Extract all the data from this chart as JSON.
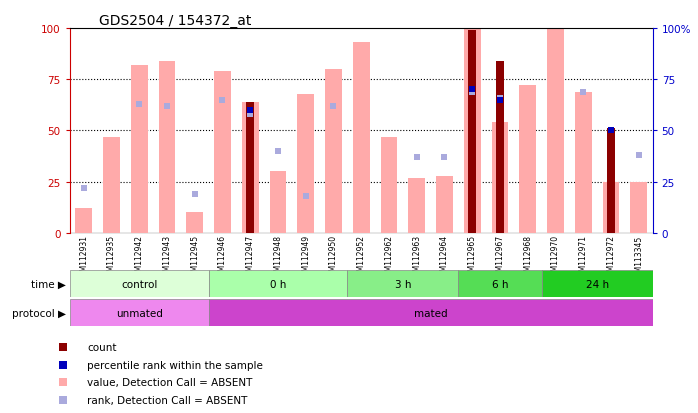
{
  "title": "GDS2504 / 154372_at",
  "samples": [
    "GSM112931",
    "GSM112935",
    "GSM112942",
    "GSM112943",
    "GSM112945",
    "GSM112946",
    "GSM112947",
    "GSM112948",
    "GSM112949",
    "GSM112950",
    "GSM112952",
    "GSM112962",
    "GSM112963",
    "GSM112964",
    "GSM112965",
    "GSM112967",
    "GSM112968",
    "GSM112970",
    "GSM112971",
    "GSM112972",
    "GSM113345"
  ],
  "value_bars": [
    12,
    47,
    82,
    84,
    10,
    79,
    64,
    30,
    68,
    80,
    93,
    47,
    27,
    28,
    100,
    54,
    72,
    100,
    69,
    25,
    25
  ],
  "count_bars": [
    0,
    0,
    0,
    0,
    0,
    0,
    64,
    0,
    0,
    0,
    0,
    0,
    0,
    0,
    99,
    84,
    0,
    0,
    0,
    51,
    0
  ],
  "rank_dots": [
    22,
    null,
    63,
    62,
    19,
    65,
    58,
    40,
    18,
    62,
    null,
    null,
    37,
    37,
    69,
    66,
    null,
    null,
    69,
    null,
    38
  ],
  "percentile_dots": [
    null,
    null,
    null,
    null,
    null,
    null,
    60,
    null,
    null,
    null,
    null,
    null,
    null,
    null,
    70,
    65,
    null,
    null,
    null,
    50,
    null
  ],
  "time_groups": [
    {
      "label": "control",
      "start": 0,
      "end": 5
    },
    {
      "label": "0 h",
      "start": 5,
      "end": 10
    },
    {
      "label": "3 h",
      "start": 10,
      "end": 14
    },
    {
      "label": "6 h",
      "start": 14,
      "end": 17
    },
    {
      "label": "24 h",
      "start": 17,
      "end": 21
    }
  ],
  "time_colors": [
    "#ddffd8",
    "#aaffaa",
    "#88ee88",
    "#55dd55",
    "#22cc22"
  ],
  "protocol_groups": [
    {
      "label": "unmated",
      "start": 0,
      "end": 5
    },
    {
      "label": "mated",
      "start": 5,
      "end": 21
    }
  ],
  "protocol_colors": [
    "#ee88ee",
    "#cc44cc"
  ],
  "value_color": "#ffaaaa",
  "count_color": "#8b0000",
  "rank_color": "#aaaadd",
  "percentile_color": "#0000bb",
  "left_axis_color": "#cc0000",
  "right_axis_color": "#0000cc",
  "ylim": [
    0,
    100
  ],
  "background_color": "#ffffff"
}
